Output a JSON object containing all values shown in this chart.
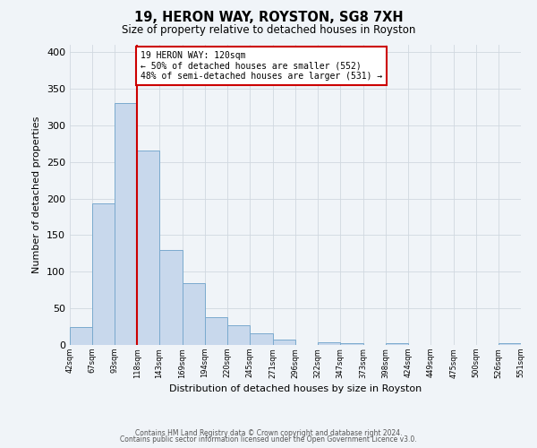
{
  "title": "19, HERON WAY, ROYSTON, SG8 7XH",
  "subtitle": "Size of property relative to detached houses in Royston",
  "xlabel": "Distribution of detached houses by size in Royston",
  "ylabel": "Number of detached properties",
  "bin_edges": [
    42,
    67,
    93,
    118,
    143,
    169,
    194,
    220,
    245,
    271,
    296,
    322,
    347,
    373,
    398,
    424,
    449,
    475,
    500,
    526,
    551
  ],
  "counts": [
    25,
    193,
    330,
    265,
    130,
    85,
    38,
    27,
    16,
    7,
    0,
    4,
    3,
    0,
    3,
    0,
    0,
    0,
    0,
    2
  ],
  "bar_color": "#c8d8ec",
  "bar_edge_color": "#7aaace",
  "vline_x": 118,
  "vline_color": "#cc0000",
  "annotation_title": "19 HERON WAY: 120sqm",
  "annotation_line1": "← 50% of detached houses are smaller (552)",
  "annotation_line2": "48% of semi-detached houses are larger (531) →",
  "annotation_box_color": "white",
  "annotation_box_edge": "#cc0000",
  "ylim": [
    0,
    410
  ],
  "yticks": [
    0,
    50,
    100,
    150,
    200,
    250,
    300,
    350,
    400
  ],
  "tick_labels": [
    "42sqm",
    "67sqm",
    "93sqm",
    "118sqm",
    "143sqm",
    "169sqm",
    "194sqm",
    "220sqm",
    "245sqm",
    "271sqm",
    "296sqm",
    "322sqm",
    "347sqm",
    "373sqm",
    "398sqm",
    "424sqm",
    "449sqm",
    "475sqm",
    "500sqm",
    "526sqm",
    "551sqm"
  ],
  "footer1": "Contains HM Land Registry data © Crown copyright and database right 2024.",
  "footer2": "Contains public sector information licensed under the Open Government Licence v3.0.",
  "grid_color": "#d0d8e0",
  "background_color": "#f0f4f8"
}
